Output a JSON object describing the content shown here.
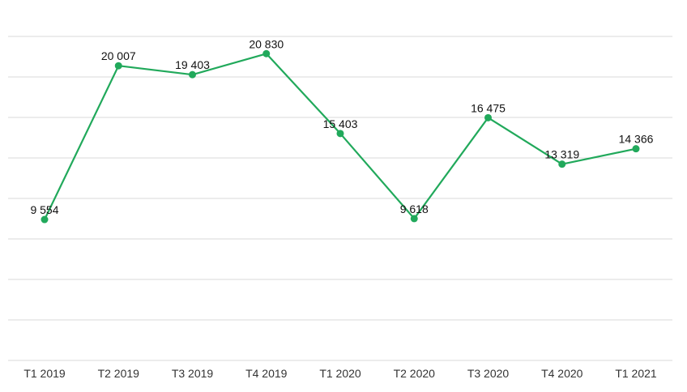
{
  "chart_data": {
    "type": "line",
    "categories": [
      "T1 2019",
      "T2 2019",
      "T3 2019",
      "T4 2019",
      "T1 2020",
      "T2 2020",
      "T3 2020",
      "T4 2020",
      "T1 2021"
    ],
    "series": [
      {
        "values": [
          9554,
          20007,
          19403,
          20830,
          15403,
          9618,
          16475,
          13319,
          14366
        ],
        "labels": [
          "9 554",
          "20 007",
          "19 403",
          "20 830",
          "15 403",
          "9 618",
          "16 475",
          "13 319",
          "14 366"
        ],
        "color": "#21a95b"
      }
    ],
    "ylim": [
      -23.4,
      22000
    ],
    "grid": true,
    "legend": false,
    "xlabel": "",
    "ylabel": ""
  }
}
